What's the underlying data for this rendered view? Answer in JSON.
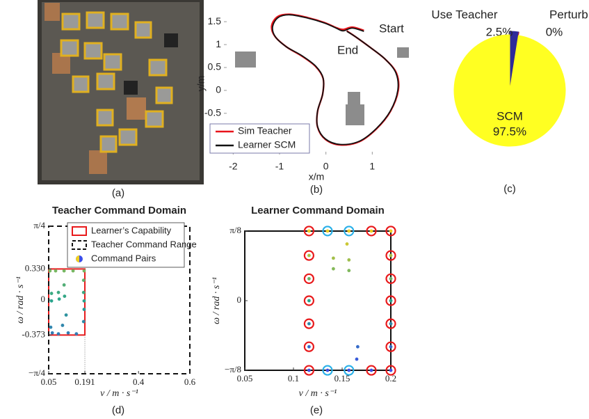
{
  "figure": {
    "panel_labels": [
      "(a)",
      "(b)",
      "(c)",
      "(d)",
      "(e)"
    ]
  },
  "chart_data": [
    {
      "type": "line",
      "x_label": "x/m",
      "y_label": "y/m",
      "annotations": [
        "Start",
        "End"
      ],
      "xlim": [
        -2.2,
        1.85
      ],
      "ylim": [
        -1.4,
        1.7
      ],
      "xticks": [
        -2,
        -1,
        0,
        1
      ],
      "yticks": [
        -0.5,
        0,
        0.5,
        1,
        1.5
      ],
      "legend": "lower left",
      "series": [
        {
          "name": "Sim Teacher",
          "color": "#e8141b",
          "x": [
            0.82,
            0.57,
            0.37,
            0.22,
            -0.03,
            -0.4,
            -0.78,
            -1.04,
            -1.17,
            -1.1,
            -0.85,
            -0.52,
            -0.22,
            -0.06,
            -0.07,
            -0.18,
            -0.18,
            -0.01,
            0.31,
            0.72,
            1.09,
            1.39,
            1.56,
            1.52,
            1.28,
            0.94,
            0.64,
            0.45
          ],
          "values": [
            1.31,
            1.38,
            1.33,
            1.37,
            1.48,
            1.59,
            1.66,
            1.61,
            1.41,
            1.18,
            0.95,
            0.75,
            0.52,
            0.26,
            -0.08,
            -0.46,
            -0.8,
            -1.07,
            -1.19,
            -1.12,
            -0.84,
            -0.46,
            0,
            0.38,
            0.68,
            0.95,
            1.17,
            1.3
          ]
        },
        {
          "name": "Learner SCM",
          "color": "#111111",
          "x": [
            0.82,
            0.57,
            0.37,
            0.22,
            -0.03,
            -0.4,
            -0.78,
            -1.03,
            -1.15,
            -1.09,
            -0.85,
            -0.52,
            -0.22,
            -0.06,
            -0.07,
            -0.18,
            -0.18,
            -0.01,
            0.31,
            0.72,
            1.09,
            1.39,
            1.55,
            1.51,
            1.28,
            0.94,
            0.64,
            0.45
          ],
          "values": [
            1.29,
            1.36,
            1.3,
            1.36,
            1.47,
            1.58,
            1.65,
            1.59,
            1.39,
            1.17,
            0.95,
            0.76,
            0.53,
            0.27,
            -0.08,
            -0.45,
            -0.79,
            -1.06,
            -1.18,
            -1.11,
            -0.83,
            -0.45,
            0,
            0.38,
            0.68,
            0.95,
            1.17,
            1.29
          ]
        }
      ]
    },
    {
      "type": "pie",
      "categories": [
        "Use Teacher",
        "Perturb",
        "SCM"
      ],
      "values": [
        2.5,
        0,
        97.5
      ],
      "value_labels": [
        "2.5%",
        "0%",
        "97.5%"
      ],
      "colors": [
        "#2e2a99",
        "#d62728",
        "#ffff22"
      ]
    },
    {
      "type": "scatter",
      "title": "Teacher Command Domain",
      "x_label": "v / m · s⁻¹",
      "y_label": "ω / rad · s⁻¹",
      "xlim": [
        0.05,
        0.6
      ],
      "ylim": [
        -0.785,
        0.785
      ],
      "xticks": [
        0.05,
        0.191,
        0.4,
        0.6
      ],
      "yticks": [
        {
          "value": -0.785,
          "label": "−π/4"
        },
        {
          "value": -0.373,
          "label": "-0.373"
        },
        0,
        {
          "value": 0.33,
          "label": "0.330"
        },
        {
          "value": 0.785,
          "label": "π/4"
        }
      ],
      "colormap": [
        "#3c4ee8",
        "#2aa58c",
        "#f0d020"
      ],
      "legend": "upper right",
      "regions": [
        {
          "name": "Learner’s Capability",
          "color": "#e8191b",
          "xlim": [
            0.05,
            0.191
          ],
          "ylim": [
            -0.373,
            0.33
          ]
        },
        {
          "name": "Teacher Command Range",
          "color": "#111111",
          "dash": true,
          "xlim": [
            0.05,
            0.6
          ],
          "ylim": [
            -0.785,
            0.785
          ]
        }
      ],
      "series": [
        {
          "name": "Command Pairs",
          "marker": "dot",
          "x": [
            0.055,
            0.077,
            0.11,
            0.145,
            0.188,
            0.11,
            0.088,
            0.112,
            0.091,
            0.061,
            0.061,
            0.186,
            0.186,
            0.188,
            0.188,
            0.118,
            0.104,
            0.126,
            0.064,
            0.058,
            0.186,
            0.088,
            0.158
          ],
          "values": [
            0.31,
            0.31,
            0.31,
            0.31,
            0.31,
            0.16,
            0.08,
            0.04,
            0.01,
            0.07,
            -0.01,
            0.21,
            0.08,
            -0.01,
            -0.1,
            -0.16,
            -0.27,
            -0.35,
            -0.35,
            -0.29,
            -0.23,
            -0.36,
            -0.36
          ]
        }
      ]
    },
    {
      "type": "scatter",
      "title": "Learner Command Domain",
      "x_label": "v / m · s⁻¹",
      "y_label": "ω / rad · s⁻¹",
      "xlim": [
        0.05,
        0.2
      ],
      "ylim": [
        -0.3927,
        0.3927
      ],
      "xticks": [
        0.05,
        0.1,
        0.15,
        0.2
      ],
      "yticks": [
        {
          "value": -0.3927,
          "label": "−π/8"
        },
        0,
        {
          "value": 0.3927,
          "label": "π/8"
        }
      ],
      "colormap": [
        "#3c4ee8",
        "#2aa58c",
        "#f0d020"
      ],
      "regions": [
        {
          "color": "#111111",
          "xlim": [
            0.05,
            0.2
          ],
          "ylim": [
            -0.3927,
            0.3927
          ]
        }
      ],
      "series": [
        {
          "marker": "dot",
          "x": [
            0.116,
            0.116,
            0.116,
            0.116,
            0.116,
            0.116,
            0.116,
            0.2,
            0.2,
            0.2,
            0.2,
            0.2,
            0.2,
            0.2,
            0.135,
            0.157,
            0.18,
            0.135,
            0.157,
            0.18,
            0.155,
            0.141,
            0.157,
            0.141,
            0.157,
            0.166,
            0.165
          ],
          "values": [
            0.393,
            0.255,
            0.124,
            0,
            -0.13,
            -0.26,
            -0.393,
            0.393,
            0.255,
            0.124,
            0,
            -0.13,
            -0.26,
            -0.393,
            0.393,
            0.393,
            0.393,
            -0.393,
            -0.393,
            -0.393,
            0.32,
            0.24,
            0.23,
            0.18,
            0.17,
            -0.26,
            -0.33
          ]
        },
        {
          "marker": "ring",
          "color": "#e8191b",
          "x": [
            0.116,
            0.116,
            0.116,
            0.116,
            0.116,
            0.116,
            0.116,
            0.2,
            0.2,
            0.2,
            0.2,
            0.2,
            0.2,
            0.2,
            0.18,
            0.18
          ],
          "values": [
            0.393,
            0.255,
            0.124,
            0,
            -0.13,
            -0.26,
            -0.393,
            0.393,
            0.255,
            0.124,
            0,
            -0.13,
            -0.26,
            -0.393,
            0.393,
            -0.393
          ]
        },
        {
          "marker": "ring",
          "color": "#2ab0e8",
          "x": [
            0.135,
            0.157,
            0.135,
            0.157
          ],
          "values": [
            0.393,
            0.393,
            -0.393,
            -0.393
          ]
        }
      ]
    }
  ]
}
